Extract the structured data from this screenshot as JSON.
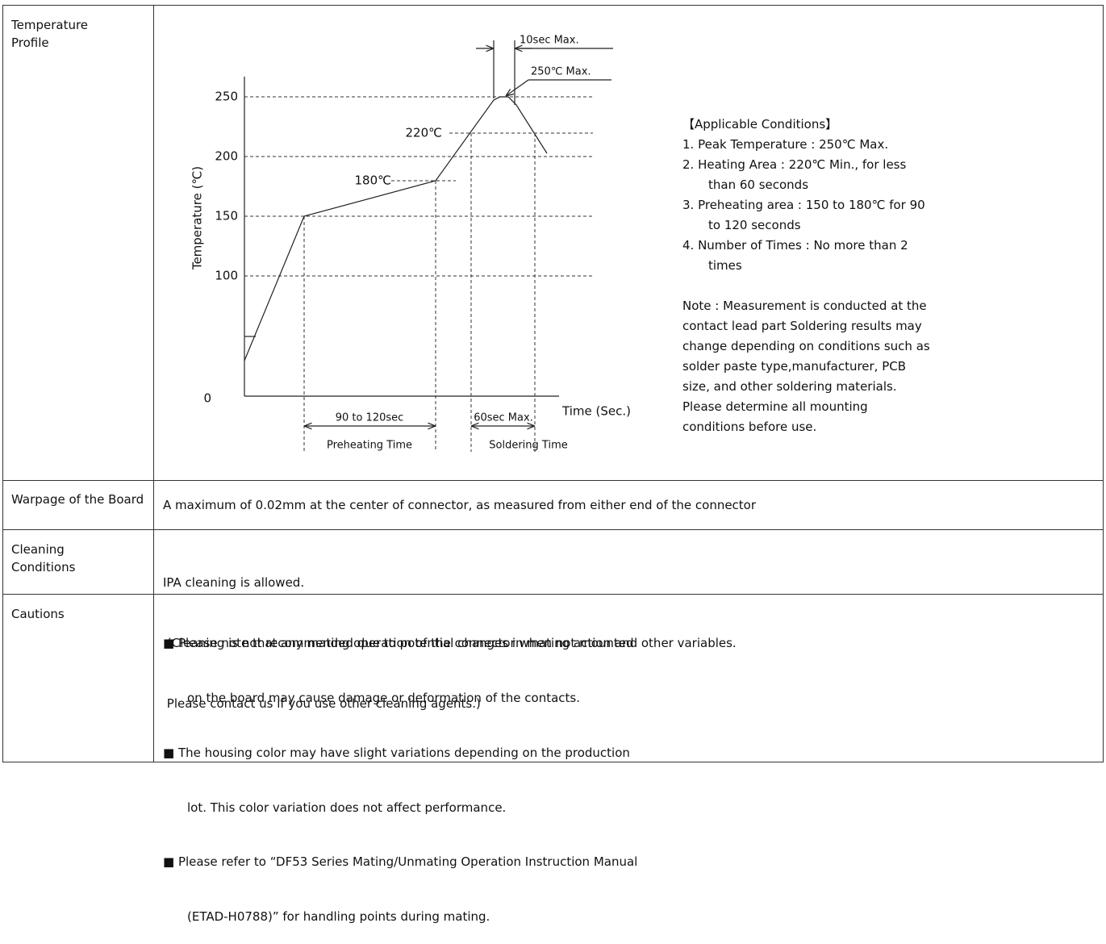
{
  "profile": {
    "label": "Temperature Profile",
    "chart": {
      "y_axis_label": "Temperature (℃)",
      "x_axis_label": "Time (Sec.)",
      "y_labels": [
        "250",
        "200",
        "150",
        "100",
        "0"
      ],
      "peak_time": "10sec Max.",
      "peak_temp": "250℃ Max.",
      "heating_temp": "220℃",
      "preheat_temp": "180℃",
      "preheat_span": "90 to 120sec",
      "preheat_caption": "Preheating Time",
      "solder_span": "60sec Max.",
      "solder_caption": "Soldering Time"
    },
    "conditions": {
      "heading": "【Applicable Conditions】",
      "items": [
        "1. Peak Temperature : 250℃ Max.",
        "2. Heating Area : 220℃ Min., for less than 60 seconds",
        "3. Preheating area : 150 to 180℃ for  90 to 120 seconds",
        "4. Number of Times : No more than 2 times"
      ],
      "note": "Note : Measurement is conducted at the contact lead part Soldering results may change depending on conditions such as solder paste type,manufacturer, PCB size, and other soldering materials. Please determine all mounting conditions before use."
    }
  },
  "warpage": {
    "label": "Warpage of the Board",
    "text": "A maximum of 0.02mm at the center of connector, as measured from either end of the connector"
  },
  "cleaning": {
    "label": "Cleaning Conditions",
    "lines": [
      "IPA cleaning is allowed.",
      " (Cleaning is not recommended due to potential changes in mating action and other variables.",
      " Please contact us if you use other cleaning agents.)"
    ]
  },
  "cautions": {
    "label": "Cautions",
    "items": [
      [
        "■ Please note that any mating operation of the connector when not mounted",
        "on the board may cause damage or deformation of the contacts."
      ],
      [
        "■ The housing color may have slight variations depending on the production",
        "lot. This color variation does not affect performance."
      ],
      [
        "■ Please refer to “DF53 Series Mating/Unmating Operation Instruction Manual",
        "(ETAD-H0788)” for handling points during mating."
      ]
    ]
  }
}
